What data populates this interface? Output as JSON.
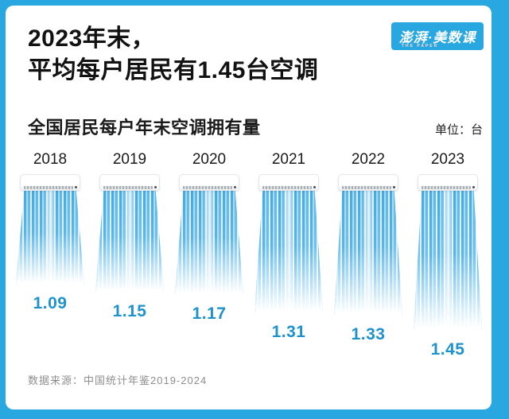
{
  "header": {
    "title_line1": "2023年末，",
    "title_line2": "平均每户居民有1.45台空调",
    "logo_text": "澎湃·美数课",
    "logo_subtext": "THE PAPER"
  },
  "chart_data": {
    "type": "bar",
    "title": "全国居民每户年末空调拥有量",
    "unit_label": "单位：台",
    "unit": "台",
    "categories": [
      "2018",
      "2019",
      "2020",
      "2021",
      "2022",
      "2023"
    ],
    "values": [
      1.09,
      1.15,
      1.17,
      1.31,
      1.33,
      1.45
    ],
    "legend": "none",
    "orientation": "vertical",
    "bar_style": "air-conditioner airflow pictogram, length encodes value",
    "colors": {
      "accent_blue": "#29A7E0",
      "value_text": "#1D92CC",
      "airflow_stripes": [
        "#45AAE3",
        "#A6DBF5",
        "#5FB8E8",
        "#D9F0FB"
      ]
    }
  },
  "footer": {
    "source": "数据来源：中国统计年鉴2019-2024"
  }
}
